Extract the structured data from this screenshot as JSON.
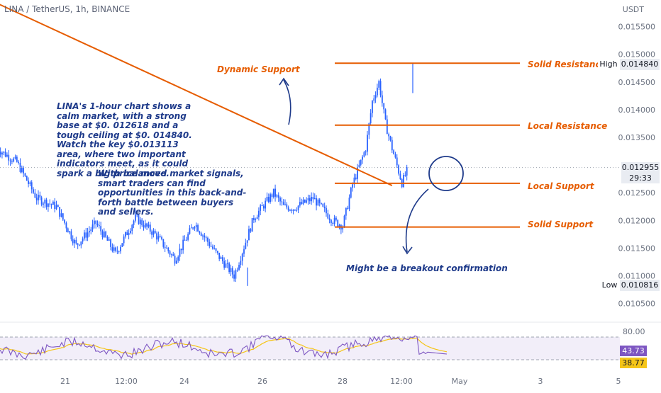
{
  "header": {
    "symbol": "LINA / TetherUS, 1h, BINANCE",
    "currency": "USDT"
  },
  "price_axis": {
    "ticks": [
      "0.015500",
      "0.015000",
      "0.014500",
      "0.014000",
      "0.013500",
      "0.012500",
      "0.012000",
      "0.011500",
      "0.011000",
      "0.010500"
    ]
  },
  "time_axis": {
    "ticks": [
      "21",
      "12:00",
      "24",
      "26",
      "28",
      "12:00",
      "May",
      "3",
      "5"
    ]
  },
  "tags": {
    "high_label": "High",
    "high_value": "0.014840",
    "low_label": "Low",
    "low_value": "0.010816",
    "last_price": "0.012955",
    "countdown": "29:33"
  },
  "levels": {
    "solid_resistance": "Solid Resistance",
    "local_resistance": "Local Resistance",
    "local_support": "Local Support",
    "solid_support": "Solid Support",
    "dynamic_support": "Dynamic Support"
  },
  "notes": {
    "para1": "LINA's 1-hour chart shows a calm market, with a strong base at $0. 012618 and a tough ceiling at $0. 014840. Watch the key $0.013113 area, where two important indicators meet, as it could spark a big price move.",
    "para2": "With balanced market signals, smart traders can find opportunities in this back-and-forth battle between buyers and sellers.",
    "breakout": "Might be a breakout confirmation"
  },
  "rsi": {
    "upper_tick": "80.00",
    "rsi_value": "43.73",
    "ma_value": "38.77"
  },
  "colors": {
    "up": "#2962ff",
    "annotation": "#e65c00",
    "text_blue": "#1e3a8a",
    "rsi_line": "#7e57c2",
    "rsi_ma": "#f5c518"
  },
  "chart_data": {
    "type": "candlestick",
    "title": "LINA / TetherUS, 1h, BINANCE",
    "price_range": [
      0.0102,
      0.0157
    ],
    "high": 0.01484,
    "low": 0.010816,
    "last": 0.012955,
    "horizontal_levels": [
      {
        "name": "Solid Resistance",
        "price": 0.01484
      },
      {
        "name": "Local Resistance",
        "price": 0.01372
      },
      {
        "name": "Local Support",
        "price": 0.01267
      },
      {
        "name": "Solid Support",
        "price": 0.01188
      }
    ],
    "trendline": {
      "name": "Dynamic Support",
      "from": {
        "date": "2025-04-19",
        "price": 0.01625
      },
      "to": {
        "date": "2025-04-30",
        "price": 0.01263
      }
    },
    "close_path": [
      {
        "date": "2025-04-20T00:00",
        "price": 0.0133
      },
      {
        "date": "2025-04-20T12:00",
        "price": 0.01305
      },
      {
        "date": "2025-04-21T00:00",
        "price": 0.0124
      },
      {
        "date": "2025-04-21T12:00",
        "price": 0.01225
      },
      {
        "date": "2025-04-22T00:00",
        "price": 0.01155
      },
      {
        "date": "2025-04-22T12:00",
        "price": 0.01195
      },
      {
        "date": "2025-04-23T00:00",
        "price": 0.0114
      },
      {
        "date": "2025-04-23T12:00",
        "price": 0.01205
      },
      {
        "date": "2025-04-24T00:00",
        "price": 0.01175
      },
      {
        "date": "2025-04-24T12:00",
        "price": 0.0113
      },
      {
        "date": "2025-04-25T00:00",
        "price": 0.01195
      },
      {
        "date": "2025-04-25T12:00",
        "price": 0.01145
      },
      {
        "date": "2025-04-26T00:00",
        "price": 0.011
      },
      {
        "date": "2025-04-26T12:00",
        "price": 0.01205
      },
      {
        "date": "2025-04-27T00:00",
        "price": 0.0125
      },
      {
        "date": "2025-04-27T06:00",
        "price": 0.01225
      },
      {
        "date": "2025-04-27T12:00",
        "price": 0.01222
      },
      {
        "date": "2025-04-28T00:00",
        "price": 0.0124
      },
      {
        "date": "2025-04-28T12:00",
        "price": 0.012
      },
      {
        "date": "2025-04-28T18:00",
        "price": 0.0119
      },
      {
        "date": "2025-04-29T00:00",
        "price": 0.01265
      },
      {
        "date": "2025-04-29T08:00",
        "price": 0.0133
      },
      {
        "date": "2025-04-29T12:00",
        "price": 0.01415
      },
      {
        "date": "2025-04-29T16:00",
        "price": 0.0145
      },
      {
        "date": "2025-04-29T20:00",
        "price": 0.01375
      },
      {
        "date": "2025-04-30T00:00",
        "price": 0.0133
      },
      {
        "date": "2025-04-30T06:00",
        "price": 0.01268
      },
      {
        "date": "2025-04-30T10:00",
        "price": 0.01295
      }
    ],
    "rsi_overbought": 80,
    "rsi_last": 43.73,
    "rsi_ma_last": 38.77
  }
}
